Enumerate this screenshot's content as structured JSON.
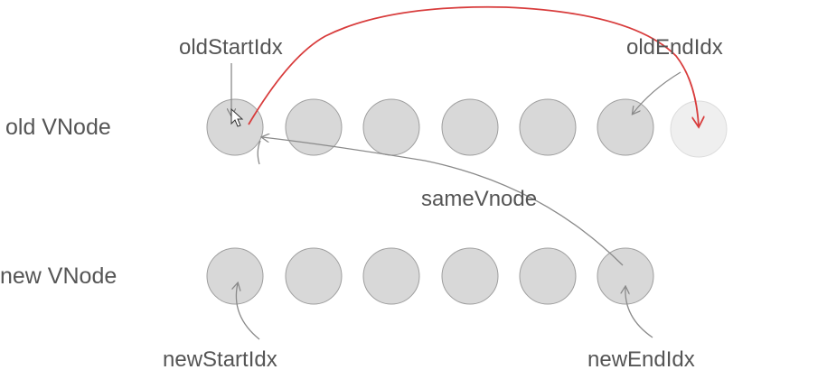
{
  "rows": {
    "old": {
      "label": "old VNode",
      "node_count": 7,
      "faded_nodes": [
        7
      ]
    },
    "new": {
      "label": "new VNode",
      "node_count": 6
    }
  },
  "pointers": {
    "old_start": "oldStartIdx",
    "old_end": "oldEndIdx",
    "new_start": "newStartIdx",
    "new_end": "newEndIdx"
  },
  "annotations": {
    "same_vnode": "sameVnode"
  },
  "colors": {
    "node_fill": "#d8d8d8",
    "node_stroke": "#9e9e9e",
    "faded_fill": "#efefef",
    "faded_stroke": "#dcdcdc",
    "text": "#555555",
    "pointer_arrow": "#8a8a8a",
    "move_arrow": "#d83c3c"
  },
  "icons": {
    "cursor": "mouse-cursor-icon"
  }
}
